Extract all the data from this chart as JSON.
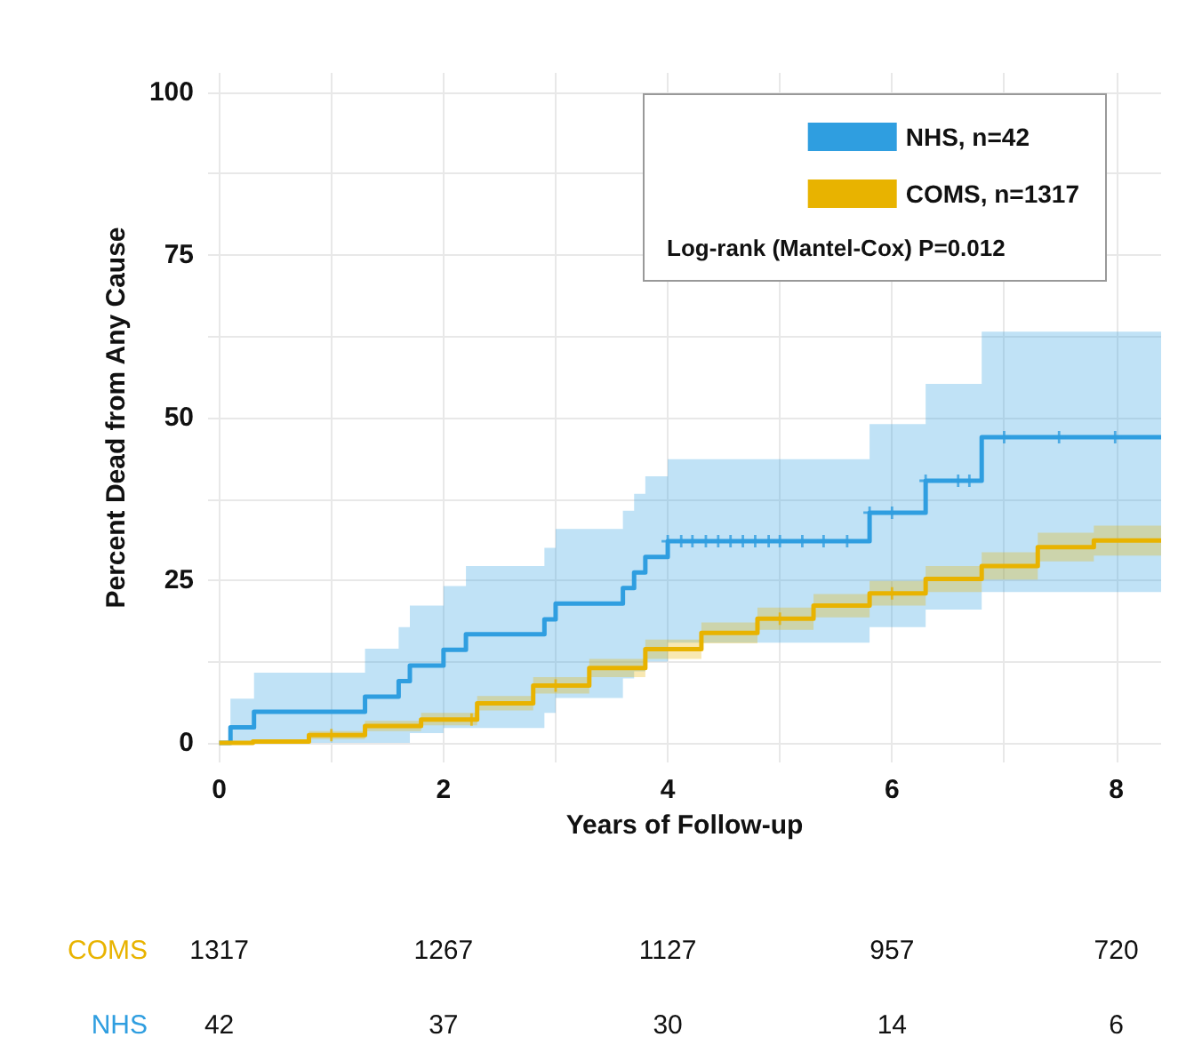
{
  "chart_data": {
    "type": "step",
    "xlabel": "Years of Follow-up",
    "ylabel": "Percent Dead from Any Cause",
    "xlim": [
      -0.1,
      8.4
    ],
    "ylim": [
      -3,
      103
    ],
    "xticks": [
      0,
      {
        "value": 1,
        "label": null
      },
      2,
      {
        "value": 3,
        "label": null
      },
      4,
      {
        "value": 5,
        "label": null
      },
      6,
      {
        "value": 7,
        "label": null
      },
      8
    ],
    "yticks": [
      0,
      {
        "value": 12.5,
        "label": null
      },
      25,
      {
        "value": 37.5,
        "label": null
      },
      50,
      {
        "value": 62.5,
        "label": null
      },
      75,
      {
        "value": 87.5,
        "label": null
      },
      100
    ],
    "grid": true,
    "legend": "top right",
    "series": [
      {
        "name": "NHS, n=42",
        "color": "#2f9ee0",
        "x": [
          0,
          0.1,
          0.31,
          1.3,
          1.6,
          1.7,
          2.0,
          2.2,
          2.9,
          3.0,
          3.6,
          3.7,
          3.8,
          4.0,
          5.8,
          6.3,
          6.8,
          8.4
        ],
        "values": [
          0,
          2.4,
          4.8,
          7.1,
          9.5,
          11.9,
          14.3,
          16.7,
          19.0,
          21.4,
          23.8,
          26.2,
          28.6,
          31.0,
          35.4,
          40.3,
          47.0,
          47.0
        ],
        "lower": [
          0,
          0,
          0,
          0,
          0,
          1.5,
          2.3,
          2.3,
          4.6,
          6.9,
          9.9,
          11.0,
          12.5,
          15.4,
          17.8,
          20.5,
          23.2,
          23.2
        ],
        "upper": [
          0,
          6.8,
          10.8,
          14.5,
          17.8,
          21.1,
          24.1,
          27.2,
          30.0,
          32.9,
          35.7,
          38.3,
          41.0,
          43.6,
          49.0,
          55.2,
          63.2,
          63.2
        ]
      },
      {
        "name": "COMS, n=1317",
        "color": "#e8b300",
        "x": [
          0,
          0.3,
          0.8,
          1.3,
          1.8,
          2.3,
          2.8,
          3.3,
          3.8,
          4.3,
          4.8,
          5.3,
          5.8,
          6.3,
          6.8,
          7.3,
          7.8,
          8.4
        ],
        "values": [
          0,
          0.2,
          1.2,
          2.6,
          3.6,
          6.1,
          8.8,
          11.5,
          14.4,
          16.9,
          19.1,
          21.1,
          23.0,
          25.2,
          27.2,
          30.1,
          31.1,
          31.1
        ],
        "lower": [
          0,
          0,
          0.6,
          1.8,
          2.7,
          5.0,
          7.6,
          10.1,
          12.9,
          15.3,
          17.4,
          19.3,
          21.1,
          23.2,
          25.1,
          27.9,
          28.8,
          28.8
        ],
        "upper": [
          0,
          0.5,
          1.8,
          3.4,
          4.6,
          7.2,
          10.1,
          12.9,
          15.9,
          18.5,
          20.8,
          22.9,
          24.9,
          27.2,
          29.3,
          32.3,
          33.4,
          33.4
        ]
      },
      {
        "type": "scatter",
        "marker": "cross",
        "color": "#2f9ee0",
        "x": [
          4.0,
          4.12,
          4.22,
          4.34,
          4.45,
          4.56,
          4.67,
          4.78,
          4.9,
          5.0,
          5.2,
          5.39,
          5.6,
          5.8,
          6.0,
          6.3,
          6.59,
          6.69,
          7.0,
          7.49,
          7.99
        ],
        "values": [
          31.0,
          31.0,
          31.0,
          31.0,
          31.0,
          31.0,
          31.0,
          31.0,
          31.0,
          31.0,
          31.0,
          31.0,
          31.0,
          35.4,
          35.4,
          40.3,
          40.3,
          40.3,
          47.0,
          47.0,
          47.0
        ]
      },
      {
        "type": "scatter",
        "marker": "cross",
        "color": "#e8b300",
        "x": [
          1,
          2.25,
          3,
          5,
          6
        ],
        "values": [
          1.2,
          3.6,
          8.8,
          19.1,
          23.0
        ]
      }
    ],
    "annotations": [
      "Log-rank (Mantel-Cox) P=0.012",
      "COMS",
      "1317",
      "1267",
      "1127",
      "957",
      "720",
      "NHS",
      "42",
      "37",
      "30",
      "14",
      "6"
    ]
  }
}
